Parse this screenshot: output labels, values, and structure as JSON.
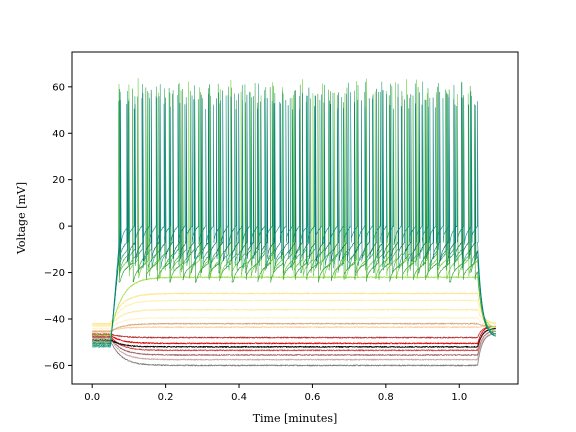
{
  "chart_data": {
    "type": "line",
    "title": "",
    "xlabel": "Time [minutes]",
    "ylabel": "Voltage [mV]",
    "xlim": [
      -0.055,
      1.16
    ],
    "ylim": [
      -68,
      75
    ],
    "xticks": [
      0.0,
      0.2,
      0.4,
      0.6,
      0.8,
      1.0
    ],
    "xtick_labels": [
      "0.0",
      "0.2",
      "0.4",
      "0.6",
      "0.8",
      "1.0"
    ],
    "yticks": [
      -60,
      -40,
      -20,
      0,
      20,
      40,
      60
    ],
    "ytick_labels": [
      "−60",
      "−40",
      "−20",
      "0",
      "20",
      "40",
      "60"
    ],
    "grid": false,
    "legend": "none",
    "stimulus": {
      "onset": 0.05,
      "offset": 1.05,
      "end": 1.1
    },
    "series": [
      {
        "color": "#7f7f7f",
        "baseline": -49.5,
        "kind": "sub",
        "plateau": -60.0,
        "end_value": -46
      },
      {
        "color": "#c8a8a8",
        "baseline": -48.5,
        "kind": "sub",
        "plateau": -57.5,
        "end_value": -46
      },
      {
        "color": "#a06868",
        "baseline": -48.0,
        "kind": "sub",
        "plateau": -55.5,
        "end_value": -45
      },
      {
        "color": "#d04040",
        "baseline": -47.5,
        "kind": "sub",
        "plateau": -53.5,
        "end_value": -44
      },
      {
        "color": "#000000",
        "baseline": -49.0,
        "kind": "sub",
        "plateau": -52.0,
        "end_value": -44
      },
      {
        "color": "#e00000",
        "baseline": -47.0,
        "kind": "sub",
        "plateau": -50.5,
        "end_value": -43
      },
      {
        "color": "#b83030",
        "baseline": -46.5,
        "kind": "sub",
        "plateau": -48.0,
        "end_value": -43
      },
      {
        "color": "#ffcc99",
        "baseline": -45.0,
        "kind": "sub",
        "plateau": -43.5,
        "end_value": -43
      },
      {
        "color": "#d2aa7a",
        "baseline": -45.5,
        "kind": "sub",
        "plateau": -42.0,
        "end_value": -43
      },
      {
        "color": "#fff3c8",
        "baseline": -44.0,
        "kind": "sub",
        "plateau": -39.5,
        "end_value": -43
      },
      {
        "color": "#ffeaa0",
        "baseline": -43.0,
        "kind": "sub",
        "plateau": -36.0,
        "end_value": -42
      },
      {
        "color": "#fff0b0",
        "baseline": -42.5,
        "kind": "sub",
        "plateau": -32.0,
        "end_value": -42
      },
      {
        "color": "#fde68a",
        "baseline": -42.0,
        "kind": "sub",
        "plateau": -29.0,
        "end_value": -42
      },
      {
        "color": "#a0e050",
        "baseline": -47.0,
        "kind": "sub",
        "plateau": -22.0,
        "end_value": -44
      },
      {
        "color": "#2e9b2e",
        "baseline": -50.0,
        "kind": "spike",
        "trough": -22.0,
        "peak": 60,
        "rate": 30,
        "end_value": -47
      },
      {
        "color": "#66cc33",
        "baseline": -49.0,
        "kind": "spike",
        "trough": -20.5,
        "peak": 64,
        "rate": 36,
        "end_value": -46
      },
      {
        "color": "#3fa34d",
        "baseline": -51.0,
        "kind": "spike",
        "trough": -18.0,
        "peak": 62,
        "rate": 41,
        "end_value": -47
      },
      {
        "color": "#1b9e77",
        "baseline": -52.0,
        "kind": "spike",
        "trough": -16.0,
        "peak": 63,
        "rate": 45,
        "end_value": -47
      },
      {
        "color": "#0b6e6e",
        "baseline": -50.5,
        "kind": "spike",
        "trough": -13.0,
        "peak": 60,
        "rate": 50,
        "end_value": -48
      },
      {
        "color": "#008b8b",
        "baseline": -51.5,
        "kind": "spike",
        "trough": -6.0,
        "peak": 58,
        "rate": 52,
        "end_value": -48
      }
    ]
  }
}
